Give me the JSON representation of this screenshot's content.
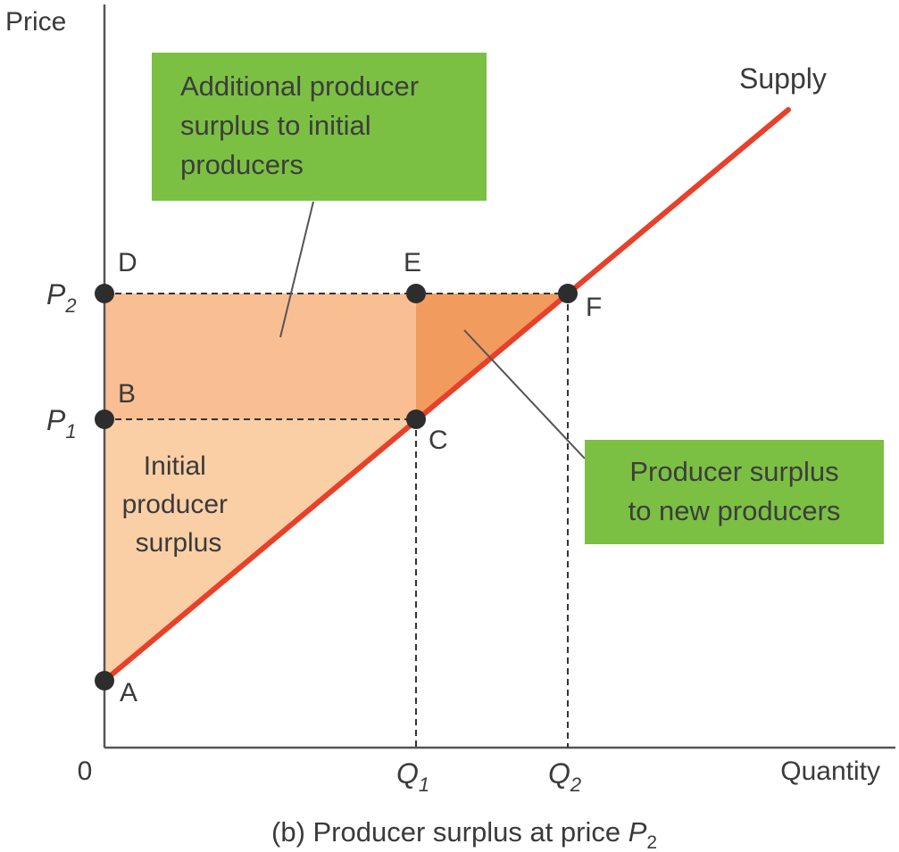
{
  "axes": {
    "y_label": "Price",
    "x_label": "Quantity",
    "origin": "0"
  },
  "price_ticks": [
    {
      "letter": "P",
      "sub": "2"
    },
    {
      "letter": "P",
      "sub": "1"
    }
  ],
  "quantity_ticks": [
    {
      "letter": "Q",
      "sub": "1"
    },
    {
      "letter": "Q",
      "sub": "2"
    }
  ],
  "points": [
    "A",
    "B",
    "C",
    "D",
    "E",
    "F"
  ],
  "curve_label": "Supply",
  "regions": {
    "initial": [
      "Initial",
      "producer",
      "surplus"
    ]
  },
  "callouts": {
    "additional": [
      "Additional producer",
      "surplus to initial",
      "producers"
    ],
    "new_producers": [
      "Producer surplus",
      "to new producers"
    ]
  },
  "caption": {
    "text": "(b) Producer surplus at price ",
    "letter": "P",
    "sub": "2"
  },
  "colors": {
    "supply": "#e8402a",
    "initial_area": "#fbcfa6",
    "additional_area": "#f9bf93",
    "new_area": "#f29b5e",
    "callout": "#7bc043",
    "point": "#2d2d2d"
  }
}
